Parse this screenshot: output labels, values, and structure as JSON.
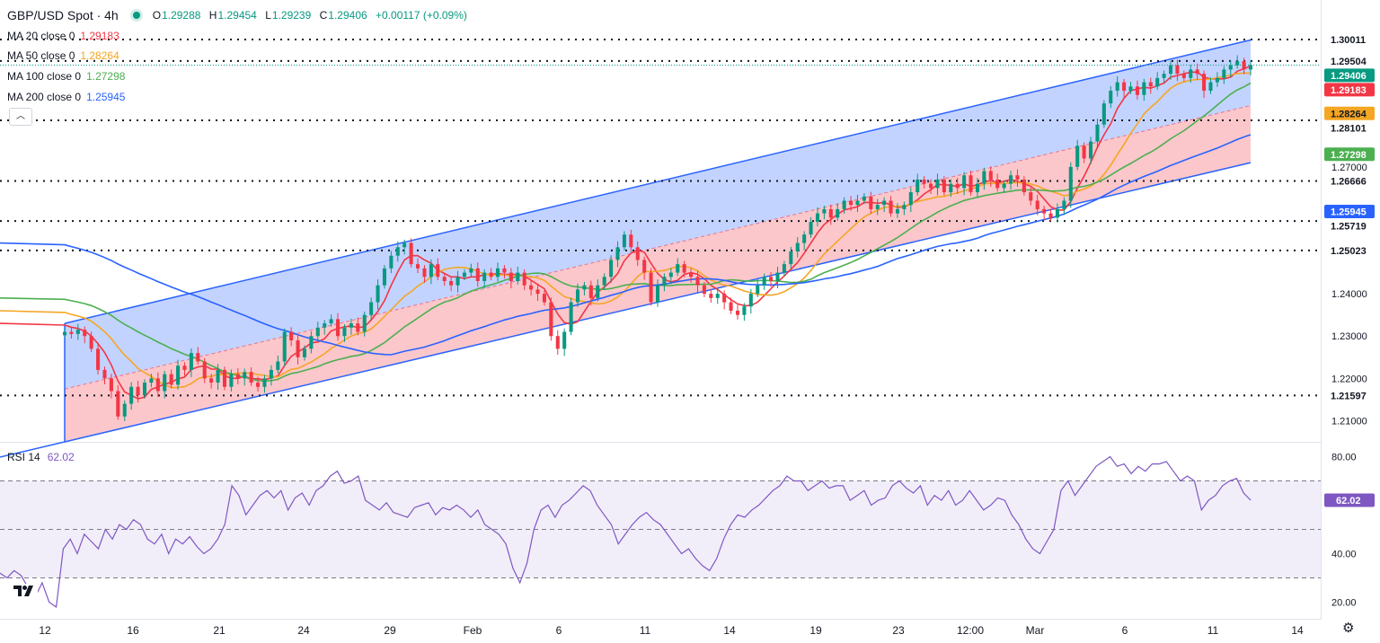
{
  "header": {
    "symbol_title": "GBP/USD Spot · 4h",
    "ohlc": [
      {
        "k": "O",
        "v": "1.29288"
      },
      {
        "k": "H",
        "v": "1.29454"
      },
      {
        "k": "L",
        "v": "1.29239"
      },
      {
        "k": "C",
        "v": "1.29406"
      },
      {
        "k": "",
        "v": "+0.00117 (+0.09%)"
      }
    ]
  },
  "indicators": [
    {
      "label": "MA 20 close 0",
      "value": "1.29183",
      "color": "#f23645"
    },
    {
      "label": "MA 50 close 0",
      "value": "1.28264",
      "color": "#f5a623"
    },
    {
      "label": "MA 100 close 0",
      "value": "1.27298",
      "color": "#4caf50"
    },
    {
      "label": "MA 200 close 0",
      "value": "1.25945",
      "color": "#2962ff"
    }
  ],
  "rsi": {
    "label": "RSI 14",
    "value": "62.02",
    "color": "#7e57c2",
    "upper": 70,
    "lower": 30,
    "mid": 50
  },
  "controls": {
    "collapse_icon": "chevron-up-icon",
    "settings_icon": "gear-icon",
    "logo": "TradingView"
  },
  "chart_data": {
    "type": "candlestick",
    "timeframe": "4h",
    "ylim": [
      1.205,
      1.3035
    ],
    "rsi_ylim": [
      15,
      85
    ],
    "price_ticks": [
      "1.27000",
      "1.24000",
      "1.23000",
      "1.22000",
      "1.21000"
    ],
    "rsi_ticks": [
      "80.00",
      "40.00",
      "20.00"
    ],
    "x_ticks": [
      "12",
      "16",
      "21",
      "24",
      "29",
      "Feb",
      "6",
      "11",
      "14",
      "19",
      "23",
      "12:00",
      "Mar",
      "6",
      "11",
      "14"
    ],
    "horizontal_levels": [
      1.30011,
      1.29504,
      1.28101,
      1.26666,
      1.25719,
      1.25023,
      1.21597
    ],
    "price_badges": [
      {
        "value": "1.30011",
        "bg": "#ffffff",
        "fg": "#131722"
      },
      {
        "value": "1.29504",
        "bg": "#ffffff",
        "fg": "#131722"
      },
      {
        "value": "1.29406",
        "bg": "#089981",
        "fg": "#ffffff"
      },
      {
        "value": "1.29183",
        "bg": "#f23645",
        "fg": "#ffffff"
      },
      {
        "value": "1.28264",
        "bg": "#f5a623",
        "fg": "#131722"
      },
      {
        "value": "1.28101",
        "bg": "#ffffff",
        "fg": "#131722"
      },
      {
        "value": "1.27298",
        "bg": "#4caf50",
        "fg": "#ffffff"
      },
      {
        "value": "1.26666",
        "bg": "#ffffff",
        "fg": "#131722"
      },
      {
        "value": "1.25945",
        "bg": "#2962ff",
        "fg": "#ffffff"
      },
      {
        "value": "1.25719",
        "bg": "#ffffff",
        "fg": "#131722"
      },
      {
        "value": "1.25023",
        "bg": "#ffffff",
        "fg": "#131722"
      },
      {
        "value": "1.21597",
        "bg": "#ffffff",
        "fg": "#131722"
      }
    ],
    "rsi_badge": {
      "value": "62.02",
      "bg": "#7e57c2",
      "fg": "#ffffff"
    },
    "channel": {
      "upper": [
        [
          0.0,
          1.233
        ],
        [
          1.0,
          1.3
        ]
      ],
      "mid": [
        [
          0.0,
          1.2175
        ],
        [
          1.0,
          1.2845
        ]
      ],
      "lower": [
        [
          0.0,
          1.205
        ],
        [
          1.0,
          1.271
        ]
      ]
    },
    "colors": {
      "up": "#089981",
      "down": "#f23645",
      "upper_fill": "rgba(41,98,255,0.28)",
      "lower_fill": "rgba(242,54,69,0.28)",
      "channel_line": "#2962ff",
      "rsi_band": "rgba(126,87,194,0.10)"
    },
    "closes": [
      1.231,
      1.2305,
      1.2315,
      1.23,
      1.227,
      1.222,
      1.22,
      1.217,
      1.211,
      1.214,
      1.218,
      1.216,
      1.219,
      1.22,
      1.217,
      1.221,
      1.2185,
      1.223,
      1.222,
      1.226,
      1.224,
      1.22,
      1.219,
      1.222,
      1.218,
      1.221,
      1.22,
      1.2215,
      1.219,
      1.218,
      1.22,
      1.222,
      1.224,
      1.231,
      1.229,
      1.225,
      1.227,
      1.23,
      1.232,
      1.233,
      1.234,
      1.23,
      1.232,
      1.233,
      1.231,
      1.235,
      1.238,
      1.242,
      1.246,
      1.249,
      1.251,
      1.252,
      1.247,
      1.246,
      1.244,
      1.247,
      1.244,
      1.243,
      1.242,
      1.244,
      1.245,
      1.246,
      1.243,
      1.245,
      1.244,
      1.246,
      1.245,
      1.243,
      1.245,
      1.242,
      1.241,
      1.24,
      1.238,
      1.23,
      1.227,
      1.231,
      1.238,
      1.241,
      1.242,
      1.239,
      1.242,
      1.244,
      1.248,
      1.251,
      1.254,
      1.251,
      1.248,
      1.245,
      1.238,
      1.242,
      1.244,
      1.245,
      1.247,
      1.245,
      1.244,
      1.242,
      1.24,
      1.239,
      1.24,
      1.238,
      1.236,
      1.235,
      1.237,
      1.24,
      1.242,
      1.244,
      1.243,
      1.245,
      1.247,
      1.25,
      1.252,
      1.254,
      1.257,
      1.259,
      1.26,
      1.258,
      1.26,
      1.262,
      1.261,
      1.262,
      1.263,
      1.26,
      1.261,
      1.262,
      1.259,
      1.26,
      1.261,
      1.264,
      1.267,
      1.266,
      1.265,
      1.267,
      1.264,
      1.266,
      1.265,
      1.268,
      1.264,
      1.266,
      1.269,
      1.267,
      1.265,
      1.266,
      1.268,
      1.267,
      1.264,
      1.262,
      1.26,
      1.259,
      1.258,
      1.26,
      1.262,
      1.27,
      1.275,
      1.272,
      1.276,
      1.28,
      1.285,
      1.288,
      1.29,
      1.288,
      1.289,
      1.287,
      1.29,
      1.289,
      1.291,
      1.292,
      1.294,
      1.292,
      1.291,
      1.293,
      1.292,
      1.288,
      1.29,
      1.291,
      1.293,
      1.294,
      1.295,
      1.293,
      1.29406
    ],
    "rsi_values": [
      32,
      30,
      33,
      31,
      26,
      22,
      28,
      20,
      18,
      42,
      46,
      40,
      48,
      45,
      42,
      50,
      46,
      52,
      50,
      54,
      52,
      46,
      44,
      48,
      40,
      46,
      44,
      47,
      43,
      40,
      42,
      46,
      52,
      68,
      64,
      56,
      60,
      64,
      66,
      63,
      66,
      58,
      63,
      65,
      60,
      66,
      68,
      72,
      74,
      69,
      70,
      72,
      62,
      60,
      58,
      61,
      57,
      56,
      55,
      59,
      60,
      61,
      56,
      59,
      58,
      60,
      58,
      55,
      58,
      52,
      50,
      48,
      44,
      34,
      28,
      36,
      50,
      58,
      60,
      55,
      60,
      62,
      65,
      68,
      66,
      60,
      56,
      52,
      44,
      48,
      52,
      55,
      57,
      54,
      52,
      48,
      44,
      40,
      42,
      38,
      35,
      33,
      38,
      46,
      52,
      56,
      55,
      58,
      60,
      63,
      66,
      68,
      72,
      70,
      70,
      66,
      68,
      70,
      67,
      68,
      68,
      62,
      64,
      66,
      60,
      62,
      63,
      68,
      70,
      67,
      65,
      68,
      60,
      64,
      62,
      66,
      60,
      62,
      66,
      62,
      58,
      60,
      63,
      62,
      56,
      52,
      46,
      42,
      40,
      45,
      50,
      66,
      70,
      64,
      68,
      72,
      76,
      78,
      80,
      76,
      77,
      73,
      76,
      74,
      77,
      77,
      78,
      74,
      70,
      72,
      70,
      58,
      62,
      64,
      68,
      70,
      71,
      65,
      62.02
    ]
  }
}
